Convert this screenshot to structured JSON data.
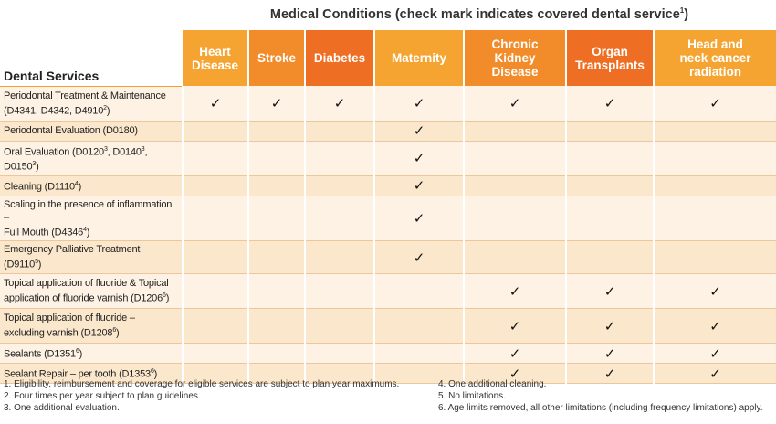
{
  "title": {
    "text": "Medical Conditions (check mark indicates covered dental service",
    "sup": "1",
    "close": ")"
  },
  "corner_label": "Dental Services",
  "columns": [
    [
      "Heart",
      "Disease"
    ],
    [
      "Stroke"
    ],
    [
      "Diabetes"
    ],
    [
      "Maternity"
    ],
    [
      "Chronic",
      "Kidney",
      "Disease"
    ],
    [
      "Organ",
      "Transplants"
    ],
    [
      "Head and",
      "neck cancer",
      "radiation"
    ]
  ],
  "check": "✓",
  "rows": [
    {
      "parts": [
        [
          "Periodontal Treatment & Maintenance",
          ""
        ],
        [
          "(D4341, D4342, D4910",
          "2"
        ],
        [
          ")",
          ""
        ]
      ],
      "lines": 2,
      "checks": [
        1,
        1,
        1,
        1,
        1,
        1,
        1
      ]
    },
    {
      "parts": [
        [
          "Periodontal Evaluation (D0180)",
          ""
        ]
      ],
      "lines": 1,
      "checks": [
        0,
        0,
        0,
        1,
        0,
        0,
        0
      ]
    },
    {
      "parts": [
        [
          "Oral Evaluation (D0120",
          "3"
        ],
        [
          ", D0140",
          "3"
        ],
        [
          ", D0150",
          "3"
        ],
        [
          ")",
          ""
        ]
      ],
      "lines": 1,
      "checks": [
        0,
        0,
        0,
        1,
        0,
        0,
        0
      ]
    },
    {
      "parts": [
        [
          "Cleaning (D1110",
          "4"
        ],
        [
          ")",
          ""
        ]
      ],
      "lines": 1,
      "checks": [
        0,
        0,
        0,
        1,
        0,
        0,
        0
      ]
    },
    {
      "parts": [
        [
          "Scaling in the presence of inflammation –",
          ""
        ],
        [
          "Full Mouth (D4346",
          "4"
        ],
        [
          ")",
          ""
        ]
      ],
      "lines": 2,
      "checks": [
        0,
        0,
        0,
        1,
        0,
        0,
        0
      ]
    },
    {
      "parts": [
        [
          "Emergency Palliative Treatment (D9110",
          "5"
        ],
        [
          ")",
          ""
        ]
      ],
      "lines": 1,
      "checks": [
        0,
        0,
        0,
        1,
        0,
        0,
        0
      ]
    },
    {
      "parts": [
        [
          "Topical application of fluoride & Topical",
          ""
        ],
        [
          "application of fluoride varnish (D1206",
          "6"
        ],
        [
          ")",
          ""
        ]
      ],
      "lines": 2,
      "checks": [
        0,
        0,
        0,
        0,
        1,
        1,
        1
      ]
    },
    {
      "parts": [
        [
          "Topical application of fluoride –",
          ""
        ],
        [
          "excluding varnish (D1208",
          "6"
        ],
        [
          ")",
          ""
        ]
      ],
      "lines": 2,
      "checks": [
        0,
        0,
        0,
        0,
        1,
        1,
        1
      ]
    },
    {
      "parts": [
        [
          "Sealants (D1351",
          "6"
        ],
        [
          ")",
          ""
        ]
      ],
      "lines": 1,
      "checks": [
        0,
        0,
        0,
        0,
        1,
        1,
        1
      ]
    },
    {
      "parts": [
        [
          "Sealant Repair – per tooth (D1353",
          "6"
        ],
        [
          ")",
          ""
        ]
      ],
      "lines": 1,
      "checks": [
        0,
        0,
        0,
        0,
        1,
        1,
        1
      ]
    }
  ],
  "footnotes_left": [
    "1. Eligibility, reimbursement and coverage for eligible services are subject to plan year maximums.",
    "2. Four times per year subject to plan guidelines.",
    "3. One additional evaluation."
  ],
  "footnotes_right": [
    "4. One additional cleaning.",
    "5. No limitations.",
    "6. Age limits removed, all other limitations (including frequency limitations) apply."
  ]
}
